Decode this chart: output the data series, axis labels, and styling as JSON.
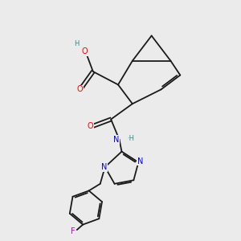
{
  "bg_color": "#ebebeb",
  "bond_color": "#1a1a1a",
  "atom_colors": {
    "O": "#ff0000",
    "N": "#0000ee",
    "F": "#cc00cc",
    "H": "#2e8b8b",
    "C": "#1a1a1a"
  },
  "figsize": [
    3.0,
    3.0
  ],
  "dpi": 100
}
